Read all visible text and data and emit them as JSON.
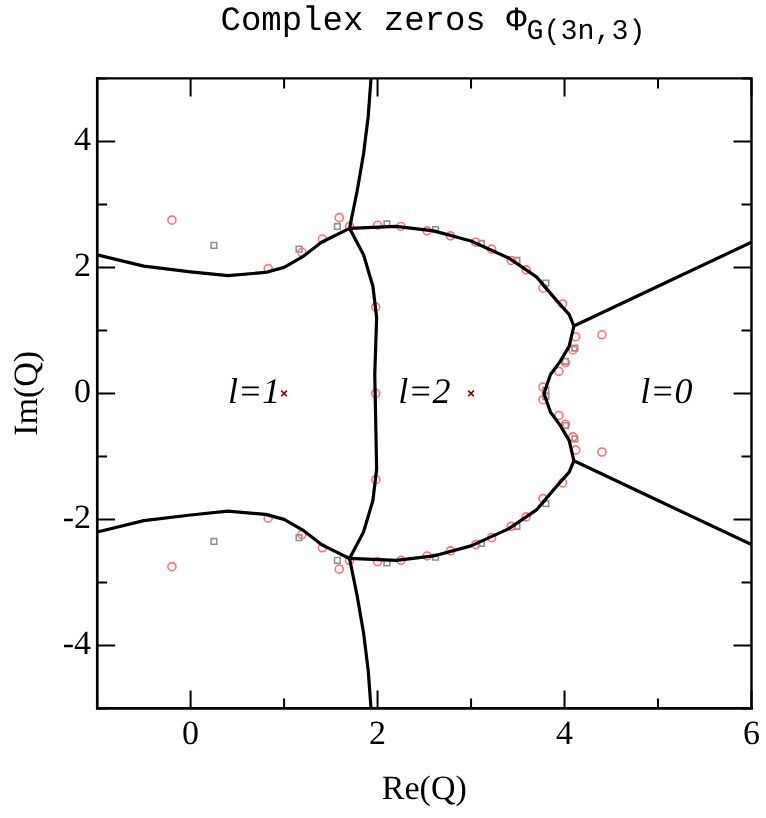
{
  "chart_data": {
    "type": "line",
    "title": "Complex zeros Φ$_{G(3n,3)}$",
    "xlabel": "Re(Q)",
    "ylabel": "Im(Q)",
    "xlim": [
      -1,
      6
    ],
    "xticks": [
      {
        "value": -1,
        "label": null
      },
      0,
      {
        "value": 1,
        "label": null
      },
      2,
      {
        "value": 3,
        "label": null
      },
      4,
      {
        "value": 5,
        "label": null
      },
      6
    ],
    "ylim": [
      -5,
      5
    ],
    "yticks": [
      {
        "value": -5,
        "label": null
      },
      -4,
      {
        "value": -3,
        "label": null
      },
      -2,
      {
        "value": -1,
        "label": null
      },
      0,
      {
        "value": 1,
        "label": null
      },
      2,
      {
        "value": 3,
        "label": null
      },
      4,
      {
        "value": 5,
        "label": null
      }
    ],
    "grid": false,
    "legend": false,
    "marker": "none",
    "line_style": "solid",
    "series": [
      {
        "color": "#000000",
        "x": [
          -1,
          -0.5,
          0,
          0.4,
          0.8,
          1.0,
          1.2,
          1.4,
          1.7
        ],
        "values": [
          2.2,
          2.02,
          1.93,
          1.87,
          1.92,
          2.0,
          2.17,
          2.4,
          2.62
        ]
      },
      {
        "color": "#000000",
        "x": [
          -1,
          -0.5,
          0,
          0.4,
          0.8,
          1.0,
          1.2,
          1.4,
          1.7
        ],
        "values": [
          -2.2,
          -2.02,
          -1.93,
          -1.87,
          -1.92,
          -2.0,
          -2.17,
          -2.4,
          -2.62
        ]
      },
      {
        "color": "#000000",
        "x": [
          1.93,
          1.9,
          1.85,
          1.78,
          1.7,
          1.85,
          1.95,
          1.99,
          1.97,
          1.99,
          1.95,
          1.85,
          1.7,
          1.78,
          1.85,
          1.9,
          1.93
        ],
        "values": [
          5,
          4.4,
          3.8,
          3.2,
          2.62,
          2.2,
          1.7,
          1.2,
          0.3,
          -1.2,
          -1.7,
          -2.2,
          -2.62,
          -3.2,
          -3.8,
          -4.4,
          -5
        ]
      },
      {
        "color": "#000000",
        "x": [
          1.7,
          2.2,
          2.6,
          3.0,
          3.4,
          3.7,
          3.9,
          4.05,
          4.1,
          4.05,
          3.95,
          3.85,
          3.78,
          3.85,
          3.95,
          4.05,
          4.1,
          4.05,
          3.9,
          3.7,
          3.4,
          3.0,
          2.6,
          2.2,
          1.7
        ],
        "values": [
          2.62,
          2.65,
          2.58,
          2.42,
          2.15,
          1.85,
          1.5,
          1.25,
          1.07,
          0.75,
          0.5,
          0.3,
          0,
          -0.3,
          -0.5,
          -0.75,
          -1.07,
          -1.25,
          -1.5,
          -1.85,
          -2.15,
          -2.42,
          -2.58,
          -2.65,
          -2.62
        ]
      },
      {
        "color": "#000000",
        "x": [
          4.1,
          5,
          6
        ],
        "values": [
          1.07,
          1.7,
          2.4
        ]
      },
      {
        "color": "#000000",
        "x": [
          4.1,
          5,
          6
        ],
        "values": [
          -1.07,
          -1.7,
          -2.4
        ]
      },
      {
        "type": "scatter",
        "marker": "circle",
        "color": "#ff7070",
        "x": [
          -0.2,
          0.83,
          1.19,
          1.41,
          1.59,
          1.7,
          1.98,
          1.98,
          1.98,
          2.0,
          2.25,
          2.53,
          2.78,
          3.05,
          3.22,
          3.43,
          3.59,
          3.77,
          3.98,
          4.4,
          4.12,
          4.09,
          4.01,
          3.94,
          3.77,
          -0.2,
          0.83,
          1.19,
          1.41,
          1.59,
          1.7,
          2.0,
          2.25,
          2.53,
          2.78,
          3.05,
          3.22,
          3.43,
          3.59,
          3.77,
          3.98,
          4.4,
          4.12,
          4.09,
          4.01,
          3.94,
          3.77
        ],
        "values": [
          2.75,
          1.98,
          2.24,
          2.45,
          2.79,
          2.65,
          1.37,
          0,
          -1.37,
          2.67,
          2.65,
          2.58,
          2.5,
          2.4,
          2.29,
          2.11,
          1.96,
          1.67,
          1.42,
          0.93,
          0.9,
          0.69,
          0.49,
          0.35,
          0.1,
          -2.75,
          -1.98,
          -2.24,
          -2.45,
          -2.79,
          -2.65,
          -2.67,
          -2.65,
          -2.58,
          -2.5,
          -2.4,
          -2.29,
          -2.11,
          -1.96,
          -1.67,
          -1.42,
          -0.93,
          -0.9,
          -0.69,
          -0.49,
          -0.35,
          -0.1
        ]
      },
      {
        "type": "scatter",
        "marker": "square",
        "color": "#909090",
        "x": [
          0.25,
          1.16,
          1.57,
          2.1,
          2.62,
          3.11,
          3.49,
          3.8,
          4.11,
          4.01,
          3.8,
          0.25,
          1.16,
          1.57,
          2.1,
          2.62,
          3.11,
          3.49,
          3.8,
          4.11,
          4.01,
          3.8
        ],
        "values": [
          2.35,
          2.29,
          2.65,
          2.69,
          2.6,
          2.38,
          2.11,
          1.75,
          0.72,
          0.51,
          0.05,
          -2.35,
          -2.29,
          -2.65,
          -2.69,
          -2.6,
          -2.38,
          -2.11,
          -1.75,
          -0.72,
          -0.51,
          -0.05
        ]
      },
      {
        "type": "scatter",
        "marker": "cross",
        "color": "#800000",
        "x": [
          1.0,
          3.0
        ],
        "values": [
          0,
          0
        ]
      }
    ],
    "annotations": [
      "l=1",
      "l=2",
      "l=0"
    ]
  }
}
